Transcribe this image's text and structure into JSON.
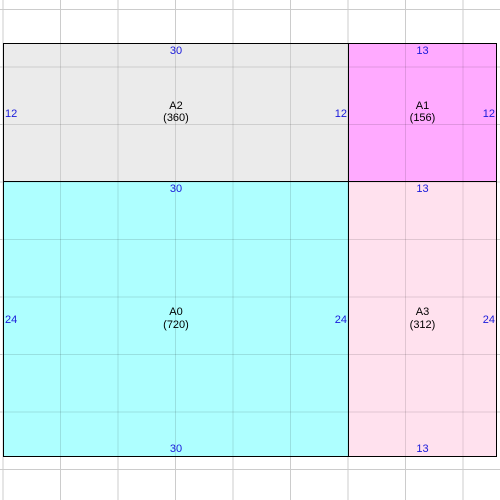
{
  "colors": {
    "grid_line": "#cccccc",
    "border": "#000000",
    "dimension_text": "#1a1adb"
  },
  "regions": [
    {
      "id": "A2",
      "name": "A2",
      "area": "(360)",
      "width_label": "30",
      "height_label": "12",
      "fill": "#ebebeb",
      "width": 30,
      "height": 12
    },
    {
      "id": "A1",
      "name": "A1",
      "area": "(156)",
      "width_label": "13",
      "height_label": "12",
      "fill": "#ffaaff",
      "width": 13,
      "height": 12
    },
    {
      "id": "A0",
      "name": "A0",
      "area": "(720)",
      "width_label": "30",
      "height_label": "24",
      "fill": "#aeffff",
      "width": 30,
      "height": 24
    },
    {
      "id": "A3",
      "name": "A3",
      "area": "(312)",
      "width_label": "13",
      "height_label": "24",
      "fill": "#ffe1ee",
      "width": 13,
      "height": 24
    }
  ]
}
